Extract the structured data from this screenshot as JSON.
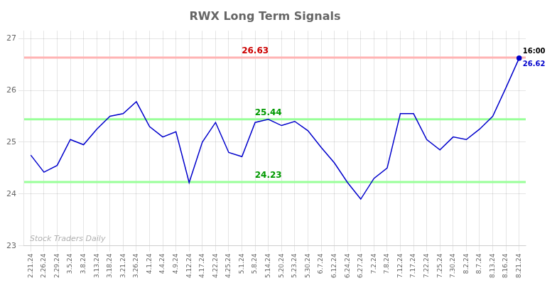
{
  "chart_data": {
    "type": "line",
    "title": "RWX Long Term Signals",
    "categories": [
      "2.21.24",
      "2.26.24",
      "2.29.24",
      "3.5.24",
      "3.8.24",
      "3.13.24",
      "3.18.24",
      "3.21.24",
      "3.26.24",
      "4.1.24",
      "4.4.24",
      "4.9.24",
      "4.12.24",
      "4.17.24",
      "4.22.24",
      "4.25.24",
      "5.1.24",
      "5.8.24",
      "5.14.24",
      "5.20.24",
      "5.23.24",
      "5.30.24",
      "6.7.24",
      "6.12.24",
      "6.24.24",
      "6.27.24",
      "7.2.24",
      "7.8.24",
      "7.12.24",
      "7.17.24",
      "7.22.24",
      "7.25.24",
      "7.30.24",
      "8.2.24",
      "8.7.24",
      "8.13.24",
      "8.16.24",
      "8.21.24"
    ],
    "values": [
      24.75,
      24.42,
      24.55,
      25.05,
      24.95,
      25.25,
      25.5,
      25.55,
      25.78,
      25.3,
      25.1,
      25.2,
      24.22,
      25.0,
      25.38,
      24.8,
      24.72,
      25.38,
      25.44,
      25.32,
      25.4,
      25.22,
      24.9,
      24.6,
      24.22,
      23.9,
      24.3,
      24.5,
      25.55,
      25.55,
      25.05,
      24.85,
      25.1,
      25.05,
      25.25,
      25.5,
      26.05,
      26.62
    ],
    "color": "#0000cc",
    "ylim": [
      23.0,
      27.15
    ],
    "yticks": [
      23,
      24,
      25,
      26,
      27
    ],
    "grid": true,
    "hlines": [
      {
        "value": 26.63,
        "label": "26.63",
        "label_at": "5.8.24",
        "color": "#ffb3b3",
        "text_color": "#cc0000"
      },
      {
        "value": 25.44,
        "label": "25.44",
        "label_at": "5.14.24",
        "color": "#99ff99",
        "text_color": "#009900"
      },
      {
        "value": 24.23,
        "label": "24.23",
        "label_at": "5.14.24",
        "color": "#99ff99",
        "text_color": "#009900"
      }
    ],
    "annotations": [
      {
        "text": "16:00",
        "x": "8.21.24",
        "y": 26.62,
        "color": "#000000"
      },
      {
        "text": "26.62",
        "x": "8.21.24",
        "y": 26.62,
        "color": "#0000cc"
      }
    ],
    "watermark": {
      "text": "Stock Traders Daily",
      "color": "#b0b0b0"
    }
  }
}
